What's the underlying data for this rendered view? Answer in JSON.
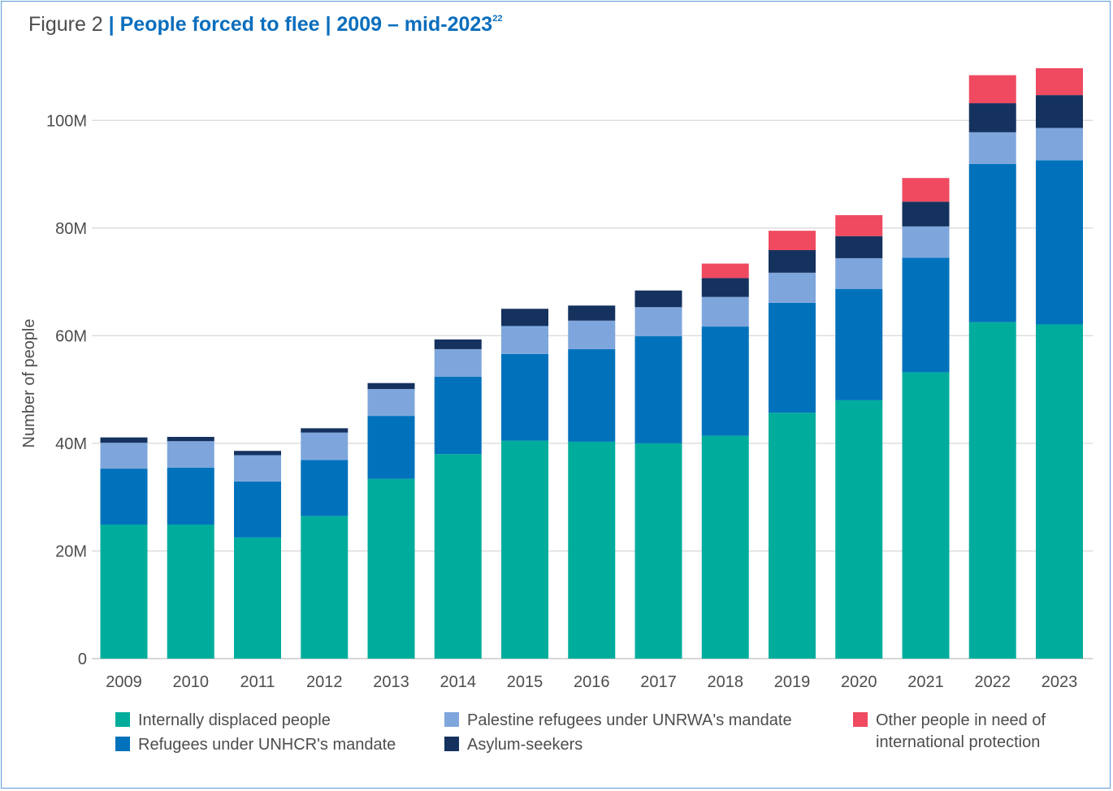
{
  "title": {
    "prefix": "Figure 2",
    "separator": "|",
    "main": "People forced to flee | 2009 – mid-2023",
    "footnote": "22"
  },
  "colors": {
    "idp": "#00ad9c",
    "refugees_unhcr": "#0072bc",
    "palestine_unrwa": "#7ea6dc",
    "asylum": "#15325f",
    "other": "#ef4a60",
    "grid": "#d9d9d9",
    "text": "#4d4d4d"
  },
  "chart_data": {
    "type": "bar",
    "stacked": true,
    "title": "People forced to flee | 2009 – mid-2023",
    "xlabel": "",
    "ylabel": "Number of people",
    "ylim": [
      0,
      110000000
    ],
    "yticks": [
      0,
      20000000,
      40000000,
      60000000,
      80000000,
      100000000
    ],
    "ytick_labels": [
      "0",
      "20M",
      "40M",
      "60M",
      "80M",
      "100M"
    ],
    "grid": true,
    "legend_position": "bottom",
    "categories": [
      "2009",
      "2010",
      "2011",
      "2012",
      "2013",
      "2014",
      "2015",
      "2016",
      "2017",
      "2018",
      "2019",
      "2020",
      "2021",
      "2022",
      "2023"
    ],
    "series": [
      {
        "name": "Internally displaced people",
        "color_key": "idp",
        "values": [
          24900000,
          24900000,
          22500000,
          26500000,
          33400000,
          38000000,
          40500000,
          40300000,
          40000000,
          41400000,
          45700000,
          48000000,
          53200000,
          62500000,
          62100000
        ]
      },
      {
        "name": "Refugees under UNHCR's mandate",
        "color_key": "refugees_unhcr",
        "values": [
          10400000,
          10600000,
          10400000,
          10400000,
          11700000,
          14400000,
          16100000,
          17200000,
          19900000,
          20300000,
          20400000,
          20700000,
          21300000,
          29400000,
          30500000
        ]
      },
      {
        "name": "Palestine refugees under UNRWA's mandate",
        "color_key": "palestine_unrwa",
        "values": [
          4800000,
          4900000,
          4900000,
          5100000,
          5000000,
          5100000,
          5200000,
          5300000,
          5400000,
          5500000,
          5600000,
          5700000,
          5800000,
          5900000,
          6000000
        ]
      },
      {
        "name": "Asylum-seekers",
        "color_key": "asylum",
        "values": [
          1000000,
          800000,
          800000,
          800000,
          1100000,
          1800000,
          3200000,
          2800000,
          3100000,
          3500000,
          4200000,
          4100000,
          4600000,
          5400000,
          6100000
        ]
      },
      {
        "name": "Other people in need of international protection",
        "color_key": "other",
        "values": [
          0,
          0,
          0,
          0,
          0,
          0,
          0,
          0,
          0,
          2700000,
          3600000,
          3900000,
          4400000,
          5200000,
          5000000
        ]
      }
    ]
  },
  "legend": [
    {
      "label": "Internally displaced people",
      "color_key": "idp"
    },
    {
      "label": "Refugees under UNHCR's mandate",
      "color_key": "refugees_unhcr"
    },
    {
      "label": "Palestine refugees under UNRWA's mandate",
      "color_key": "palestine_unrwa"
    },
    {
      "label": "Asylum-seekers",
      "color_key": "asylum"
    },
    {
      "label": "Other people in need of international protection",
      "color_key": "other"
    }
  ]
}
